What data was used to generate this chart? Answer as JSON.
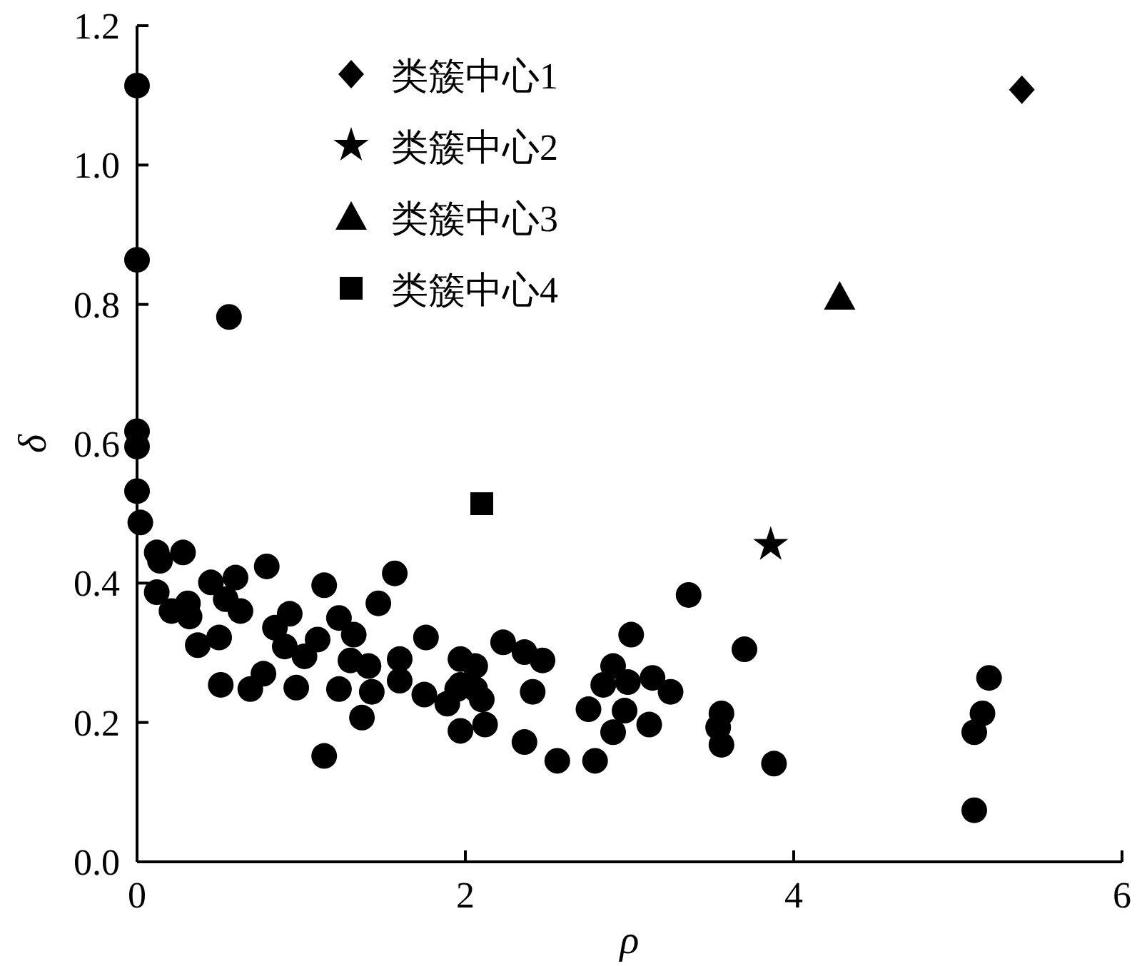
{
  "chart_data": {
    "type": "scatter",
    "xlabel": "ρ",
    "ylabel": "δ",
    "xlim": [
      0,
      6
    ],
    "ylim": [
      0,
      1.2
    ],
    "xticks": [
      0,
      2,
      4,
      6
    ],
    "yticks": [
      {
        "value": 0,
        "label": "0.0"
      },
      {
        "value": 0.2,
        "label": "0.2"
      },
      {
        "value": 0.4,
        "label": "0.4"
      },
      {
        "value": 0.6,
        "label": "0.6"
      },
      {
        "value": 0.8,
        "label": "0.8"
      },
      {
        "value": 1,
        "label": "1.0"
      },
      {
        "value": 1.2,
        "label": "1.2"
      }
    ],
    "grid": false,
    "legend": "top left",
    "series": [
      {
        "color": "#000000",
        "marker": "circle",
        "x": [
          0,
          0,
          0,
          0,
          0,
          0.02,
          0.56,
          0.12,
          0.28,
          0.14,
          0.12,
          0.21,
          0.31,
          0.32,
          0.45,
          0.6,
          0.54,
          0.63,
          0.37,
          0.5,
          0.51,
          0.69,
          0.77,
          0.79,
          0.84,
          0.93,
          0.9,
          1.02,
          1.1,
          0.97,
          1.14,
          1.14,
          1.23,
          1.32,
          1.3,
          1.41,
          1.23,
          1.43,
          1.37,
          1.47,
          1.57,
          1.6,
          1.6,
          1.76,
          1.75,
          1.89,
          1.97,
          2.06,
          1.97,
          2.06,
          1.97,
          2.12,
          2.23,
          2.36,
          2.47,
          2.41,
          1.95,
          2.1,
          2.36,
          2.56,
          2.79,
          2.9,
          2.84,
          2.99,
          3.14,
          3.25,
          2.75,
          2.97,
          2.9,
          3.12,
          3.01,
          3.36,
          3.7,
          3.56,
          3.54,
          3.56,
          3.88,
          5.19,
          5.15,
          5.1,
          5.1
        ],
        "values": [
          1.114,
          0.864,
          0.618,
          0.596,
          0.532,
          0.487,
          0.782,
          0.444,
          0.444,
          0.432,
          0.387,
          0.36,
          0.371,
          0.352,
          0.401,
          0.408,
          0.377,
          0.36,
          0.311,
          0.322,
          0.254,
          0.248,
          0.27,
          0.424,
          0.336,
          0.356,
          0.309,
          0.295,
          0.319,
          0.25,
          0.397,
          0.152,
          0.35,
          0.326,
          0.289,
          0.281,
          0.248,
          0.244,
          0.207,
          0.371,
          0.414,
          0.291,
          0.26,
          0.322,
          0.24,
          0.227,
          0.291,
          0.281,
          0.254,
          0.248,
          0.188,
          0.197,
          0.315,
          0.301,
          0.289,
          0.244,
          0.248,
          0.233,
          0.172,
          0.145,
          0.145,
          0.281,
          0.254,
          0.258,
          0.264,
          0.244,
          0.219,
          0.217,
          0.186,
          0.197,
          0.326,
          0.383,
          0.305,
          0.213,
          0.193,
          0.168,
          0.141,
          0.264,
          0.213,
          0.186,
          0.074
        ]
      },
      {
        "name": "类簇中心1",
        "color": "#000000",
        "marker": "diamond",
        "x": [
          5.39
        ],
        "values": [
          1.108
        ]
      },
      {
        "name": "类簇中心2",
        "color": "#000000",
        "marker": "star",
        "x": [
          3.86
        ],
        "values": [
          0.455
        ]
      },
      {
        "name": "类簇中心3",
        "color": "#000000",
        "marker": "triangle",
        "x": [
          4.28
        ],
        "values": [
          0.811
        ]
      },
      {
        "name": "类簇中心4",
        "color": "#000000",
        "marker": "square",
        "x": [
          2.1
        ],
        "values": [
          0.514
        ]
      }
    ]
  }
}
